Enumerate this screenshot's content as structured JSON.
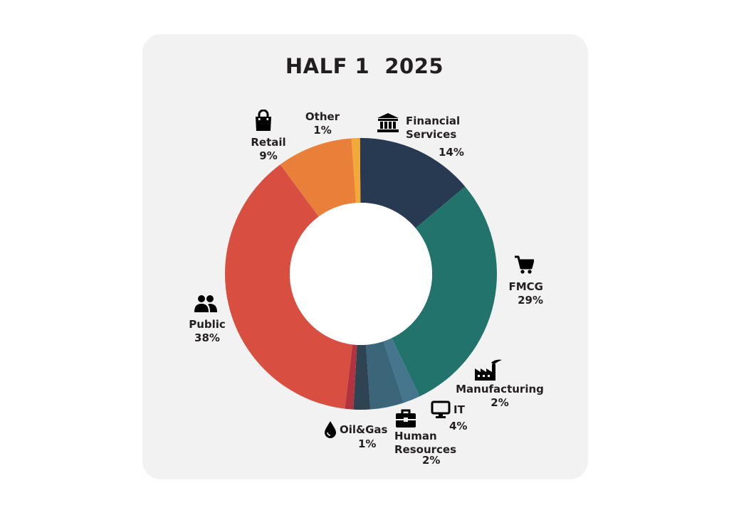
{
  "chart_data": {
    "type": "pie",
    "title": "HALF 1  2025",
    "slices": [
      {
        "label": "Financial Services",
        "value": 14,
        "pct_label": "14%",
        "icon": "bank-icon",
        "color": "#283a52"
      },
      {
        "label": "FMCG",
        "value": 29,
        "pct_label": "29%",
        "icon": "shopping-cart-icon",
        "color": "#22736b"
      },
      {
        "label": "Manufacturing",
        "value": 2,
        "pct_label": "2%",
        "icon": "factory-icon",
        "color": "#45768e"
      },
      {
        "label": "IT",
        "value": 4,
        "pct_label": "4%",
        "icon": "monitor-icon",
        "color": "#3b6579"
      },
      {
        "label": "Human Resources",
        "value": 2,
        "pct_label": "2%",
        "icon": "briefcase-icon",
        "color": "#2f4452"
      },
      {
        "label": "Oil&Gas",
        "value": 1,
        "pct_label": "1%",
        "icon": "oil-drop-icon",
        "color": "#b0333f"
      },
      {
        "label": "Public",
        "value": 38,
        "pct_label": "38%",
        "icon": "people-icon",
        "color": "#d84f42"
      },
      {
        "label": "Retail",
        "value": 9,
        "pct_label": "9%",
        "icon": "shopping-bag-icon",
        "color": "#e9803a"
      },
      {
        "label": "Other",
        "value": 1,
        "pct_label": "1%",
        "icon": "",
        "color": "#f3a83a"
      }
    ]
  },
  "labels": {
    "financial": {
      "name1": "Financial",
      "name2": "Services",
      "pct": "14%"
    },
    "fmcg": {
      "name": "FMCG",
      "pct": "29%"
    },
    "manufacturing": {
      "name": "Manufacturing",
      "pct": "2%"
    },
    "it": {
      "name": "IT",
      "pct": "4%"
    },
    "hr": {
      "name1": "Human",
      "name2": "Resources",
      "pct": "2%"
    },
    "oil": {
      "name": "Oil&Gas",
      "pct": "1%"
    },
    "public": {
      "name": "Public",
      "pct": "38%"
    },
    "retail": {
      "name": "Retail",
      "pct": "9%"
    },
    "other": {
      "name": "Other",
      "pct": "1%"
    }
  }
}
